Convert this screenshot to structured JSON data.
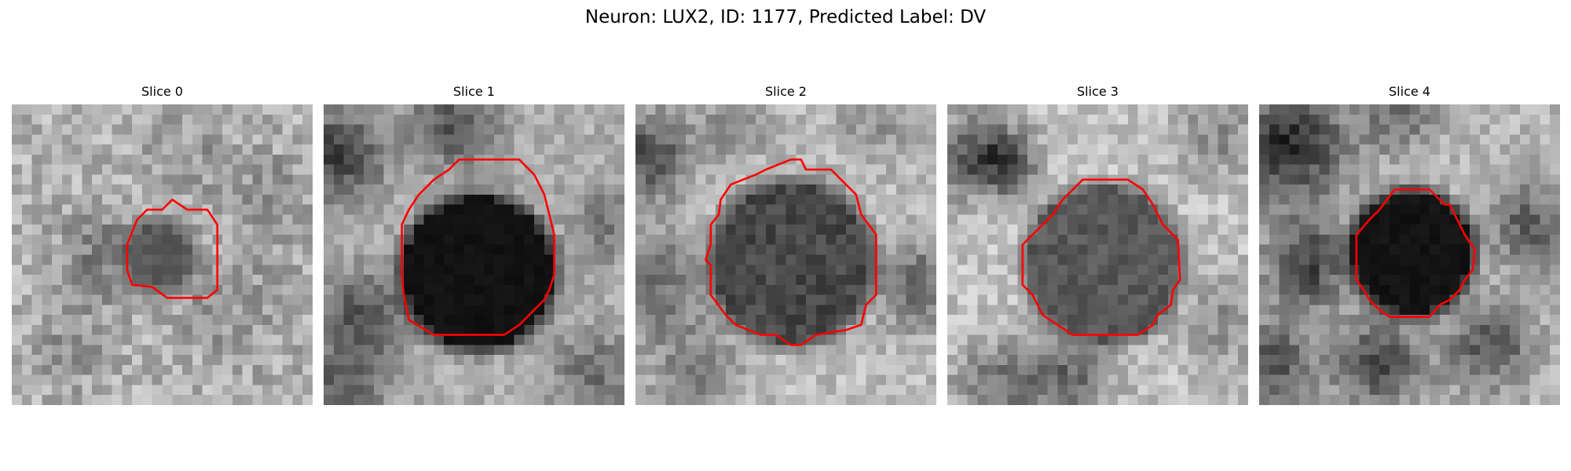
{
  "figure": {
    "title": "Neuron: LUX2, ID: 1177, Predicted Label: DV"
  },
  "slices": [
    {
      "title": "Slice 0"
    },
    {
      "title": "Slice 1"
    },
    {
      "title": "Slice 2"
    },
    {
      "title": "Slice 3"
    },
    {
      "title": "Slice 4"
    }
  ],
  "colors": {
    "contour": "#ff0000",
    "background": "#ffffff"
  }
}
